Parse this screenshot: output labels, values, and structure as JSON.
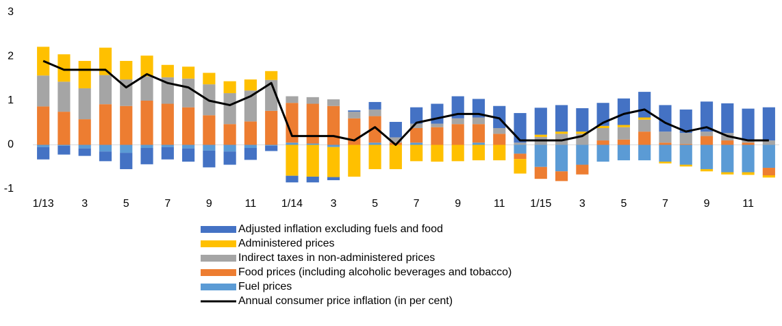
{
  "chart_data": {
    "type": "bar",
    "stacked": true,
    "categories": [
      "1/13",
      null,
      "3",
      null,
      "5",
      null,
      "7",
      null,
      "9",
      null,
      "11",
      null,
      "1/14",
      null,
      "3",
      null,
      "5",
      null,
      "7",
      null,
      "9",
      null,
      "11",
      null,
      "1/15",
      null,
      "3",
      null,
      "5",
      null,
      "7",
      null,
      "9",
      null,
      "11",
      null
    ],
    "series": [
      {
        "name": "Adjusted inflation excluding fuels and food",
        "color": "#4472c4",
        "values": [
          -0.28,
          -0.2,
          -0.17,
          -0.22,
          -0.37,
          -0.37,
          -0.28,
          -0.3,
          -0.38,
          -0.3,
          -0.27,
          -0.12,
          -0.15,
          -0.13,
          -0.07,
          0.03,
          0.17,
          0.35,
          0.37,
          0.45,
          0.5,
          0.42,
          0.5,
          0.67,
          0.61,
          0.6,
          0.53,
          0.52,
          0.6,
          0.58,
          0.6,
          0.53,
          0.68,
          0.67,
          0.72,
          0.75
        ]
      },
      {
        "name": "Administered prices",
        "color": "#ffc000",
        "values": [
          0.65,
          0.62,
          0.62,
          0.62,
          0.42,
          0.47,
          0.28,
          0.27,
          0.26,
          0.27,
          0.25,
          0.2,
          -0.7,
          -0.72,
          -0.68,
          -0.72,
          -0.55,
          -0.55,
          -0.37,
          -0.38,
          -0.37,
          -0.35,
          -0.35,
          -0.33,
          0.05,
          0.05,
          0.05,
          0.05,
          0.05,
          0.05,
          -0.04,
          -0.04,
          -0.05,
          -0.05,
          -0.06,
          -0.05
        ]
      },
      {
        "name": "Indirect taxes in non-administered prices",
        "color": "#a5a5a5",
        "values": [
          0.7,
          0.68,
          0.7,
          0.66,
          0.6,
          0.55,
          0.6,
          0.65,
          0.7,
          0.7,
          0.7,
          0.7,
          0.15,
          0.15,
          0.15,
          0.15,
          0.15,
          0.12,
          0.1,
          0.08,
          0.13,
          0.15,
          0.13,
          0.05,
          0.18,
          0.25,
          0.25,
          0.28,
          0.28,
          0.27,
          0.25,
          0.25,
          0.1,
          0.17,
          0.05,
          0.1
        ]
      },
      {
        "name": "Food prices (including alcoholic beverages and tobacco)",
        "color": "#ed7d31",
        "values": [
          0.87,
          0.75,
          0.58,
          0.92,
          0.88,
          1.0,
          0.93,
          0.85,
          0.67,
          0.47,
          0.53,
          0.77,
          0.9,
          0.9,
          0.88,
          0.6,
          0.6,
          0.05,
          0.33,
          0.4,
          0.47,
          0.42,
          0.25,
          -0.12,
          -0.27,
          -0.22,
          -0.22,
          0.1,
          0.12,
          0.3,
          0.05,
          0.02,
          0.2,
          0.1,
          0.05,
          -0.17
        ]
      },
      {
        "name": "Fuel prices",
        "color": "#5b9bd5",
        "values": [
          -0.05,
          -0.02,
          -0.08,
          -0.15,
          -0.18,
          -0.07,
          -0.05,
          -0.08,
          -0.13,
          -0.15,
          -0.07,
          -0.02,
          0.05,
          0.03,
          -0.05,
          0,
          0.05,
          0,
          0.05,
          0,
          0,
          0.05,
          0,
          -0.2,
          -0.5,
          -0.6,
          -0.45,
          -0.38,
          -0.35,
          -0.35,
          -0.38,
          -0.45,
          -0.55,
          -0.62,
          -0.62,
          -0.52
        ]
      },
      {
        "name": "Annual consumer price inflation (in per cent)",
        "color": "#000000",
        "type": "line",
        "values": [
          1.9,
          1.7,
          1.7,
          1.7,
          1.3,
          1.6,
          1.4,
          1.3,
          1.0,
          0.9,
          1.1,
          1.4,
          0.2,
          0.2,
          0.2,
          0.1,
          0.4,
          0,
          0.5,
          0.6,
          0.7,
          0.7,
          0.6,
          0.1,
          0.1,
          0.1,
          0.2,
          0.5,
          0.7,
          0.8,
          0.5,
          0.3,
          0.4,
          0.2,
          0.1,
          0.1
        ]
      }
    ],
    "ylim": [
      -1,
      3
    ],
    "yticks": [
      -1,
      0,
      1,
      2,
      3
    ],
    "grid": false,
    "legend": "bottom"
  }
}
